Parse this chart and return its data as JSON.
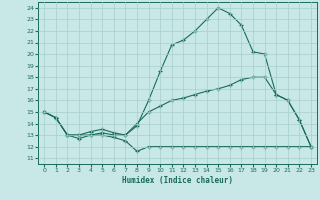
{
  "xlabel": "Humidex (Indice chaleur)",
  "bg_color": "#c8e8e8",
  "line_color": "#1a6b5a",
  "grid_color": "#a8cece",
  "xlim": [
    -0.5,
    23.5
  ],
  "ylim": [
    10.5,
    24.5
  ],
  "yticks": [
    11,
    12,
    13,
    14,
    15,
    16,
    17,
    18,
    19,
    20,
    21,
    22,
    23,
    24
  ],
  "xticks": [
    0,
    1,
    2,
    3,
    4,
    5,
    6,
    7,
    8,
    9,
    10,
    11,
    12,
    13,
    14,
    15,
    16,
    17,
    18,
    19,
    20,
    21,
    22,
    23
  ],
  "line1_x": [
    0,
    1,
    2,
    3,
    4,
    5,
    6,
    7,
    8,
    9,
    10,
    11,
    12,
    13,
    14,
    15,
    16,
    17,
    18,
    19,
    20,
    21,
    22,
    23
  ],
  "line1_y": [
    15.0,
    14.5,
    13.0,
    12.7,
    13.0,
    13.0,
    12.8,
    12.5,
    11.6,
    12.0,
    12.0,
    12.0,
    12.0,
    12.0,
    12.0,
    12.0,
    12.0,
    12.0,
    12.0,
    12.0,
    12.0,
    12.0,
    12.0,
    12.0
  ],
  "line2_x": [
    0,
    1,
    2,
    3,
    4,
    5,
    6,
    7,
    8,
    9,
    10,
    11,
    12,
    13,
    14,
    15,
    16,
    17,
    18,
    19,
    20,
    21,
    22,
    23
  ],
  "line2_y": [
    15.0,
    14.5,
    13.0,
    13.0,
    13.0,
    13.2,
    13.0,
    13.0,
    13.8,
    16.0,
    18.5,
    20.8,
    21.2,
    22.0,
    23.0,
    24.0,
    23.5,
    22.5,
    20.2,
    20.0,
    16.5,
    16.0,
    14.3,
    12.0
  ],
  "line3_x": [
    0,
    1,
    2,
    3,
    4,
    5,
    6,
    7,
    8,
    9,
    10,
    11,
    12,
    13,
    14,
    15,
    16,
    17,
    18,
    19,
    20,
    21,
    22,
    23
  ],
  "line3_y": [
    15.0,
    14.5,
    13.0,
    13.0,
    13.3,
    13.5,
    13.2,
    13.0,
    14.0,
    15.0,
    15.5,
    16.0,
    16.2,
    16.5,
    16.8,
    17.0,
    17.3,
    17.8,
    18.0,
    18.0,
    16.5,
    16.0,
    14.3,
    12.0
  ]
}
